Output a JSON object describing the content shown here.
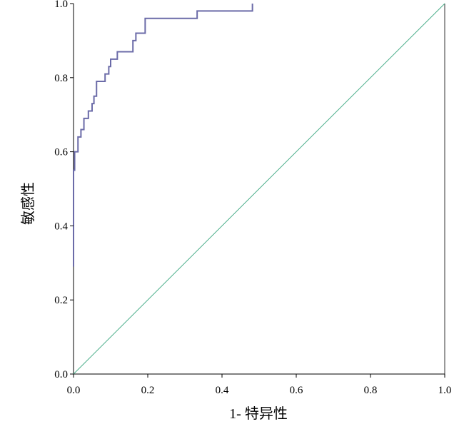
{
  "chart_data": {
    "type": "line",
    "title": "",
    "xlabel": "1- 特异性",
    "ylabel": "敏感性",
    "xlim": [
      0,
      1
    ],
    "ylim": [
      0,
      1
    ],
    "x_ticks": [
      "0.0",
      "0.2",
      "0.4",
      "0.6",
      "0.8",
      "1.0"
    ],
    "y_ticks": [
      "0.0",
      "0.2",
      "0.4",
      "0.6",
      "0.8",
      "1.0"
    ],
    "grid": false,
    "legend": "none",
    "series": [
      {
        "color": "#6b6ba8",
        "style": "step",
        "points": [
          [
            0.0,
            0.29
          ],
          [
            0.0,
            0.55
          ],
          [
            0.003,
            0.55
          ],
          [
            0.003,
            0.6
          ],
          [
            0.012,
            0.6
          ],
          [
            0.012,
            0.64
          ],
          [
            0.02,
            0.64
          ],
          [
            0.02,
            0.66
          ],
          [
            0.028,
            0.66
          ],
          [
            0.028,
            0.69
          ],
          [
            0.04,
            0.69
          ],
          [
            0.04,
            0.71
          ],
          [
            0.05,
            0.71
          ],
          [
            0.05,
            0.73
          ],
          [
            0.055,
            0.73
          ],
          [
            0.055,
            0.75
          ],
          [
            0.062,
            0.75
          ],
          [
            0.062,
            0.79
          ],
          [
            0.085,
            0.79
          ],
          [
            0.085,
            0.81
          ],
          [
            0.095,
            0.81
          ],
          [
            0.095,
            0.83
          ],
          [
            0.1,
            0.83
          ],
          [
            0.1,
            0.85
          ],
          [
            0.118,
            0.85
          ],
          [
            0.118,
            0.87
          ],
          [
            0.16,
            0.87
          ],
          [
            0.16,
            0.9
          ],
          [
            0.168,
            0.9
          ],
          [
            0.168,
            0.92
          ],
          [
            0.193,
            0.92
          ],
          [
            0.193,
            0.96
          ],
          [
            0.333,
            0.96
          ],
          [
            0.333,
            0.98
          ],
          [
            0.482,
            0.98
          ],
          [
            0.482,
            1.0
          ]
        ]
      },
      {
        "color": "#4aae8a",
        "style": "line",
        "points": [
          [
            0,
            0
          ],
          [
            1,
            1
          ]
        ]
      }
    ]
  }
}
